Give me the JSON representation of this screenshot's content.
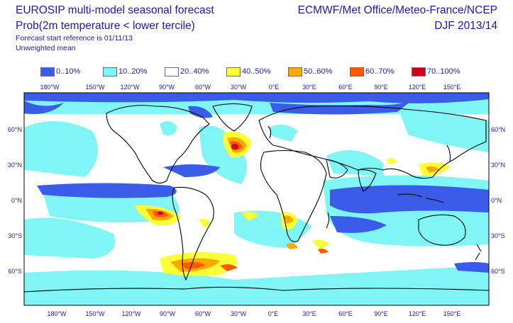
{
  "header": {
    "title_line1": "EUROSIP multi-model seasonal forecast",
    "title_line2": "Prob(2m temperature < lower tercile)",
    "subtitle_line1": "Forecast start reference is 01/11/13",
    "subtitle_line2": "Unweighted mean",
    "agencies": "ECMWF/Met Office/Meteo-France/NCEP",
    "season": "DJF 2013/14"
  },
  "legend": [
    {
      "label": "0..10%",
      "color": "#3b5ce8"
    },
    {
      "label": "10..20%",
      "color": "#7ff5f5"
    },
    {
      "label": "20..40%",
      "color": "#ffffff"
    },
    {
      "label": "40..50%",
      "color": "#ffff38"
    },
    {
      "label": "50..60%",
      "color": "#ffa800"
    },
    {
      "label": "60..70%",
      "color": "#ff5a00"
    },
    {
      "label": "70..100%",
      "color": "#d00020"
    }
  ],
  "axes": {
    "lon_top": [
      "180°W",
      "150°W",
      "120°W",
      "90°W",
      "60°W",
      "30°W",
      "0°E",
      "30°E",
      "60°E",
      "90°E",
      "120°E",
      "150°E"
    ],
    "lon_bottom": [
      "180°W",
      "150°W",
      "120°W",
      "90°W",
      "60°W",
      "30°W",
      "0°E",
      "30°E",
      "60°E",
      "90°E",
      "120°E",
      "150°E"
    ],
    "lat_left": [
      "60°N",
      "30°N",
      "0°N",
      "30°S",
      "60°S"
    ],
    "lat_right": [
      "60°N",
      "30°N",
      "0°N",
      "30°S",
      "60°S"
    ]
  }
}
